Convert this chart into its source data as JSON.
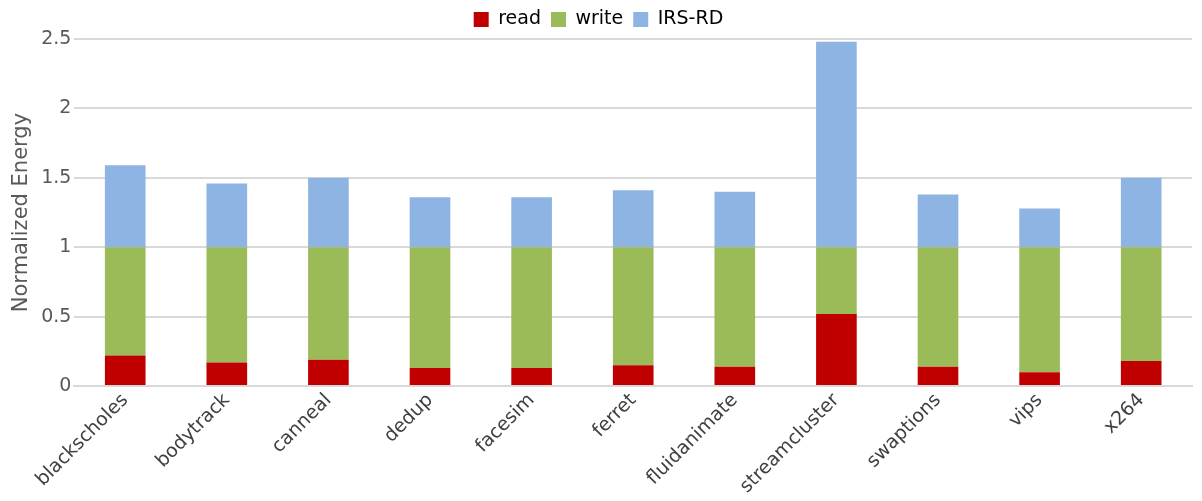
{
  "chart_data": {
    "type": "bar",
    "ylabel": "Normalized Energy",
    "stacked": true,
    "categories": [
      "blackscholes",
      "bodytrack",
      "canneal",
      "dedup",
      "facesim",
      "ferret",
      "fluidanimate",
      "streamcluster",
      "swaptions",
      "vips",
      "x264"
    ],
    "series": [
      {
        "name": "read",
        "color": "#c00000",
        "values": [
          0.22,
          0.17,
          0.19,
          0.13,
          0.13,
          0.15,
          0.14,
          0.52,
          0.14,
          0.1,
          0.18
        ]
      },
      {
        "name": "write",
        "color": "#9bbb59",
        "values": [
          0.78,
          0.83,
          0.81,
          0.87,
          0.87,
          0.85,
          0.86,
          0.48,
          0.86,
          0.9,
          0.82
        ]
      },
      {
        "name": "IRS-RD",
        "color": "#8eb4e3",
        "values": [
          0.59,
          0.46,
          0.5,
          0.36,
          0.36,
          0.41,
          0.4,
          1.48,
          0.38,
          0.28,
          0.5
        ]
      }
    ],
    "ylim": [
      0,
      2.5
    ],
    "yticks": [
      0,
      0.5,
      1,
      1.5,
      2,
      2.5
    ],
    "grid": "y",
    "legend": "top"
  }
}
